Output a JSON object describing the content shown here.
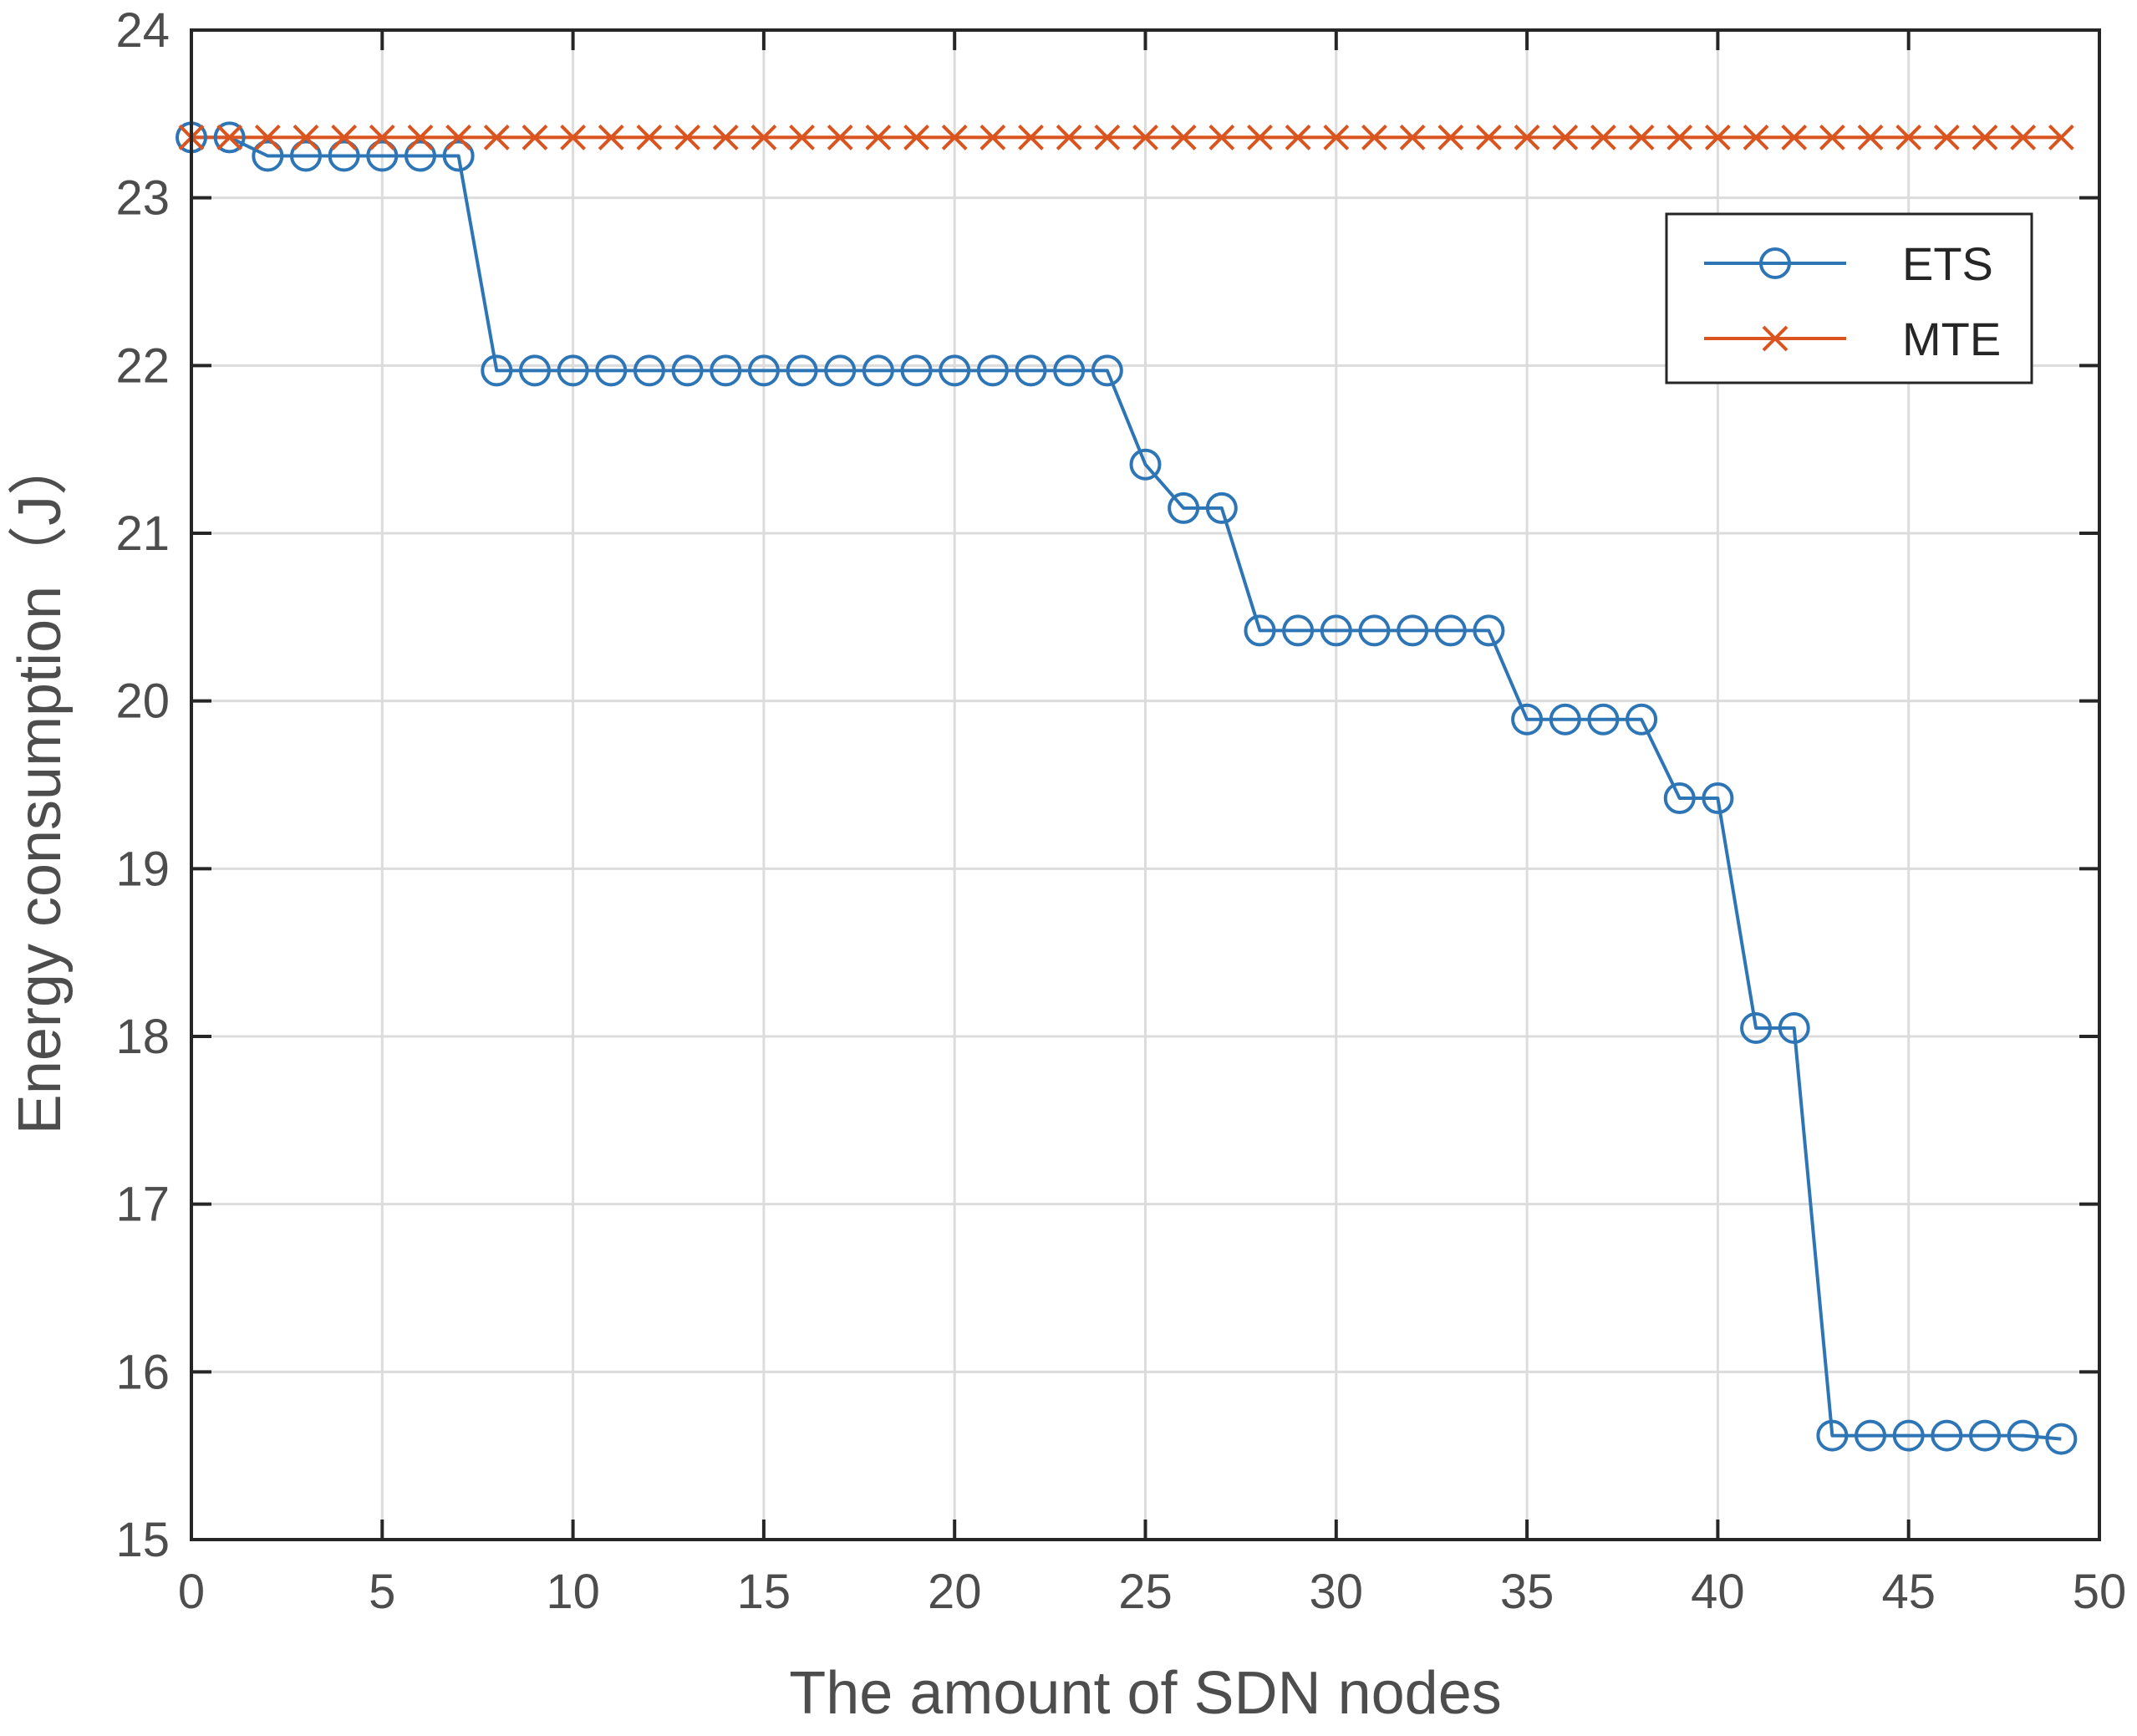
{
  "chart_data": {
    "type": "line",
    "title": "",
    "xlabel": "The amount of SDN nodes",
    "ylabel": "Energy consumption（J）",
    "xlim": [
      0,
      50
    ],
    "ylim": [
      15,
      24
    ],
    "xticks": [
      0,
      5,
      10,
      15,
      20,
      25,
      30,
      35,
      40,
      45,
      50
    ],
    "yticks": [
      15,
      16,
      17,
      18,
      19,
      20,
      21,
      22,
      23,
      24
    ],
    "xtick_labels": [
      "0",
      "5",
      "10",
      "15",
      "20",
      "25",
      "30",
      "35",
      "40",
      "45",
      "50"
    ],
    "ytick_labels": [
      "15",
      "16",
      "17",
      "18",
      "19",
      "20",
      "21",
      "22",
      "23",
      "24"
    ],
    "grid": true,
    "legend_position": "top-right",
    "x": [
      0,
      1,
      2,
      3,
      4,
      5,
      6,
      7,
      8,
      9,
      10,
      11,
      12,
      13,
      14,
      15,
      16,
      17,
      18,
      19,
      20,
      21,
      22,
      23,
      24,
      25,
      26,
      27,
      28,
      29,
      30,
      31,
      32,
      33,
      34,
      35,
      36,
      37,
      38,
      39,
      40,
      41,
      42,
      43,
      44,
      45,
      46,
      47,
      48,
      49
    ],
    "series": [
      {
        "name": "ETS",
        "color": "#2e75b6",
        "marker": "circle",
        "values": [
          23.36,
          23.36,
          23.25,
          23.25,
          23.25,
          23.25,
          23.25,
          23.25,
          21.97,
          21.97,
          21.97,
          21.97,
          21.97,
          21.97,
          21.97,
          21.97,
          21.97,
          21.97,
          21.97,
          21.97,
          21.97,
          21.97,
          21.97,
          21.97,
          21.97,
          21.41,
          21.15,
          21.15,
          20.42,
          20.42,
          20.42,
          20.42,
          20.42,
          20.42,
          20.42,
          19.89,
          19.89,
          19.89,
          19.89,
          19.42,
          19.42,
          18.05,
          18.05,
          15.62,
          15.62,
          15.62,
          15.62,
          15.62,
          15.62,
          15.6
        ]
      },
      {
        "name": "MTE",
        "color": "#d9541e",
        "marker": "x",
        "values": [
          23.36,
          23.36,
          23.36,
          23.36,
          23.36,
          23.36,
          23.36,
          23.36,
          23.36,
          23.36,
          23.36,
          23.36,
          23.36,
          23.36,
          23.36,
          23.36,
          23.36,
          23.36,
          23.36,
          23.36,
          23.36,
          23.36,
          23.36,
          23.36,
          23.36,
          23.36,
          23.36,
          23.36,
          23.36,
          23.36,
          23.36,
          23.36,
          23.36,
          23.36,
          23.36,
          23.36,
          23.36,
          23.36,
          23.36,
          23.36,
          23.36,
          23.36,
          23.36,
          23.36,
          23.36,
          23.36,
          23.36,
          23.36,
          23.36,
          23.36
        ]
      }
    ]
  }
}
